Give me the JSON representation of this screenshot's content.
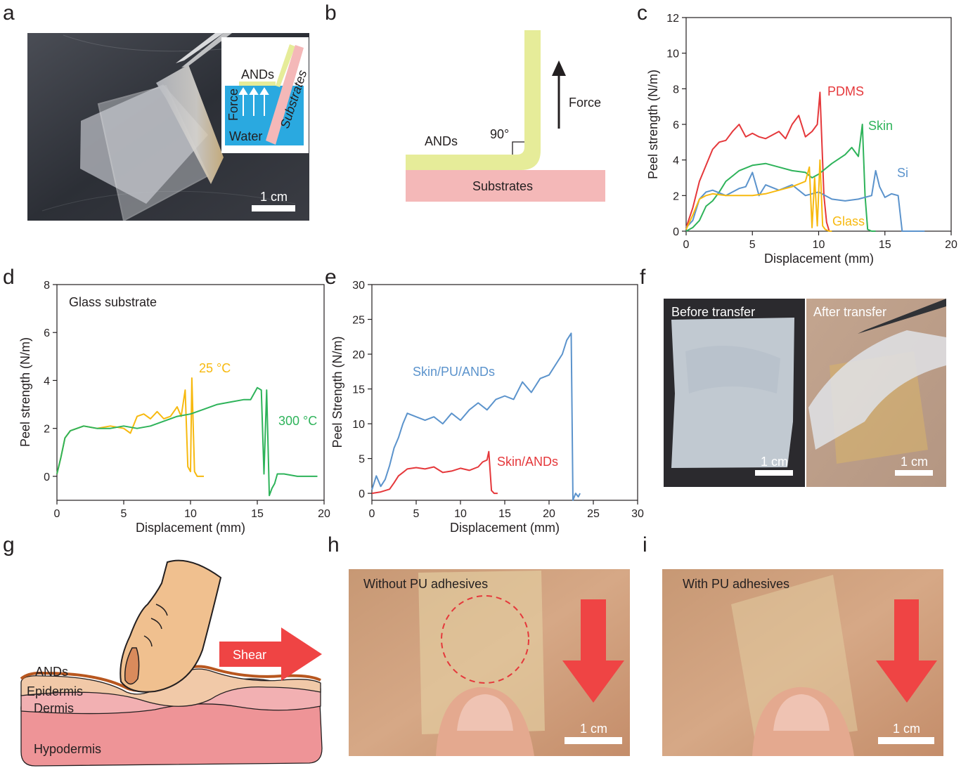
{
  "panels": [
    "a",
    "b",
    "c",
    "d",
    "e",
    "f",
    "g",
    "h",
    "i"
  ],
  "colors": {
    "red": "#e5383b",
    "green": "#2eb35a",
    "blue": "#5b93cc",
    "yellow": "#f7b90f",
    "ands": "#e6ec99",
    "substrate": "#f4b8b8",
    "water": "#2aa9e0",
    "arrow_red": "#ef4444",
    "skin_top": "#f1c9a8",
    "dermis": "#f2b0b2",
    "hypodermis": "#ee9497"
  },
  "icons": [
    "tweezers-icon",
    "force-arrow-icon",
    "shear-arrow-icon",
    "finger-icon",
    "down-arrow-icon"
  ],
  "panel_a": {
    "inset_ands": "ANDs",
    "inset_substrates": "Substrates",
    "inset_force": "Force",
    "inset_water": "Water",
    "scalebar": "1 cm"
  },
  "panel_b": {
    "ands": "ANDs",
    "angle": "90°",
    "force": "Force",
    "substrates": "Substrates"
  },
  "panel_f": {
    "before": "Before transfer",
    "after": "After transfer",
    "scalebar1": "1 cm",
    "scalebar2": "1 cm"
  },
  "panel_g": {
    "ands": "ANDs",
    "epidermis": "Epidermis",
    "dermis": "Dermis",
    "hypodermis": "Hypodermis",
    "shear": "Shear"
  },
  "panel_h": {
    "title": "Without PU adhesives",
    "scalebar": "1 cm"
  },
  "panel_i": {
    "title": "With PU adhesives",
    "scalebar": "1 cm"
  },
  "chart_data": [
    {
      "id": "c",
      "type": "line",
      "xlabel": "Displacement (mm)",
      "ylabel": "Peel strength (N/m)",
      "xlim": [
        0,
        20
      ],
      "ylim": [
        0,
        12
      ],
      "xticks": [
        0,
        5,
        10,
        15,
        20
      ],
      "yticks": [
        0,
        2,
        4,
        6,
        8,
        10,
        12
      ],
      "series": [
        {
          "name": "PDMS",
          "color": "#e5383b",
          "x": [
            0,
            0.5,
            1,
            1.5,
            2,
            2.5,
            3,
            3.5,
            4,
            4.5,
            5,
            5.5,
            6,
            6.5,
            7,
            7.5,
            8,
            8.5,
            9,
            9.5,
            9.9,
            10.1,
            10.4,
            10.6,
            10.8
          ],
          "y": [
            0.2,
            1.3,
            2.8,
            3.7,
            4.6,
            5.0,
            5.1,
            5.6,
            6.0,
            5.3,
            5.5,
            5.3,
            5.2,
            5.4,
            5.6,
            5.2,
            6.0,
            6.5,
            5.3,
            5.6,
            6.0,
            7.8,
            2.0,
            0.5,
            0.0
          ]
        },
        {
          "name": "Skin",
          "color": "#2eb35a",
          "x": [
            0,
            0.5,
            1,
            1.5,
            2,
            2.5,
            3,
            3.5,
            4,
            5,
            6,
            7,
            8,
            9,
            9.5,
            10,
            11,
            12,
            12.5,
            13,
            13.3,
            13.5,
            13.7,
            14,
            14.3
          ],
          "y": [
            0.0,
            0.2,
            0.6,
            1.4,
            1.7,
            2.2,
            2.8,
            3.1,
            3.4,
            3.7,
            3.8,
            3.6,
            3.4,
            3.3,
            3.0,
            3.2,
            3.8,
            4.3,
            4.7,
            4.2,
            6.0,
            2.0,
            0.1,
            0.0,
            0.0
          ]
        },
        {
          "name": "Si",
          "color": "#5b93cc",
          "x": [
            0,
            0.5,
            1,
            1.5,
            2,
            3,
            4,
            4.5,
            5,
            5.5,
            6,
            7,
            8,
            9,
            10,
            11,
            12,
            13,
            14,
            14.3,
            14.6,
            15,
            15.5,
            16,
            16.3,
            17,
            18
          ],
          "y": [
            0.2,
            0.6,
            1.8,
            2.2,
            2.3,
            2.0,
            2.4,
            2.5,
            3.3,
            2.0,
            2.6,
            2.3,
            2.6,
            2.0,
            2.2,
            1.8,
            1.7,
            1.8,
            2.0,
            3.4,
            2.5,
            1.9,
            2.1,
            2.0,
            0.0,
            0.0,
            0.0
          ]
        },
        {
          "name": "Glass",
          "color": "#f7b90f",
          "x": [
            0,
            0.5,
            1,
            1.5,
            2,
            3,
            4,
            5,
            6,
            7,
            8,
            9,
            9.3,
            9.5,
            9.7,
            9.9,
            10.1,
            10.3,
            10.5,
            10.8,
            11
          ],
          "y": [
            0.1,
            0.9,
            1.8,
            2.0,
            2.1,
            2.0,
            2.0,
            2.0,
            2.1,
            2.3,
            2.5,
            2.8,
            3.6,
            0.2,
            3.0,
            0.3,
            4.0,
            0.3,
            0.1,
            0.0,
            0.0
          ]
        }
      ]
    },
    {
      "id": "d",
      "type": "line",
      "annotation": "Glass substrate",
      "xlabel": "Displacement (mm)",
      "ylabel": "Peel strength (N/m)",
      "xlim": [
        0,
        20
      ],
      "ylim": [
        -1,
        8
      ],
      "xticks": [
        0,
        5,
        10,
        15,
        20
      ],
      "yticks": [
        0,
        2,
        4,
        6,
        8
      ],
      "series": [
        {
          "name": "25 °C",
          "color": "#f7b90f",
          "x": [
            0,
            0.3,
            0.6,
            1,
            1.5,
            2,
            3,
            4,
            5,
            5.5,
            6,
            6.5,
            7,
            7.5,
            8,
            8.5,
            9,
            9.3,
            9.6,
            9.8,
            10,
            10.1,
            10.3,
            10.5,
            10.8,
            11
          ],
          "y": [
            0.1,
            0.8,
            1.6,
            1.9,
            2.0,
            2.1,
            2.0,
            2.1,
            2.0,
            1.8,
            2.5,
            2.6,
            2.4,
            2.7,
            2.4,
            2.5,
            2.9,
            2.5,
            3.6,
            0.4,
            0.2,
            4.1,
            0.2,
            0.0,
            0.0,
            0.0
          ]
        },
        {
          "name": "300 °C",
          "color": "#2eb35a",
          "x": [
            0,
            0.3,
            0.6,
            1,
            2,
            3,
            4,
            5,
            6,
            7,
            8,
            9,
            10,
            11,
            12,
            13,
            14,
            14.5,
            15,
            15.3,
            15.5,
            15.7,
            15.9,
            16.1,
            16.3,
            16.5,
            17,
            18,
            19,
            19.5
          ],
          "y": [
            0.1,
            0.8,
            1.6,
            1.9,
            2.1,
            2.0,
            2.0,
            2.1,
            2.0,
            2.1,
            2.3,
            2.5,
            2.6,
            2.8,
            3.0,
            3.1,
            3.2,
            3.2,
            3.7,
            3.6,
            0.1,
            3.6,
            -0.8,
            -0.5,
            -0.3,
            0.1,
            0.1,
            0.0,
            0.0,
            0.0
          ]
        }
      ]
    },
    {
      "id": "e",
      "type": "line",
      "xlabel": "Displacement (mm)",
      "ylabel": "Peel Strength (N/m)",
      "xlim": [
        0,
        30
      ],
      "ylim": [
        -1,
        30
      ],
      "xticks": [
        0,
        5,
        10,
        15,
        20,
        25,
        30
      ],
      "yticks": [
        0,
        5,
        10,
        15,
        20,
        25,
        30
      ],
      "series": [
        {
          "name": "Skin/PU/ANDs",
          "color": "#5b93cc",
          "x": [
            0,
            0.5,
            1,
            1.5,
            2,
            2.5,
            3,
            3.5,
            4,
            5,
            6,
            7,
            8,
            9,
            10,
            11,
            12,
            13,
            14,
            15,
            16,
            17,
            18,
            19,
            20,
            21,
            21.5,
            22,
            22.5,
            22.7,
            23,
            23.3,
            23.5
          ],
          "y": [
            0.5,
            2.5,
            1.0,
            2.0,
            4.0,
            6.5,
            8.0,
            10.0,
            11.5,
            11.0,
            10.5,
            11.0,
            10.0,
            11.5,
            10.5,
            12.0,
            13.0,
            12.0,
            13.5,
            14.0,
            13.5,
            16.0,
            14.5,
            16.5,
            17.0,
            19.0,
            20.0,
            22.0,
            23.0,
            -1.0,
            0.0,
            -0.5,
            0.0
          ]
        },
        {
          "name": "Skin/ANDs",
          "color": "#e5383b",
          "x": [
            0,
            1,
            2,
            2.5,
            3,
            3.5,
            4,
            5,
            6,
            7,
            8,
            9,
            10,
            11,
            12,
            12.5,
            13,
            13.2,
            13.5,
            13.8,
            14.2
          ],
          "y": [
            0.0,
            0.2,
            0.6,
            1.5,
            2.5,
            3.0,
            3.5,
            3.7,
            3.5,
            3.8,
            3.0,
            3.2,
            3.6,
            3.3,
            3.8,
            4.5,
            4.8,
            6.0,
            0.4,
            0.0,
            0.0
          ]
        }
      ]
    }
  ]
}
